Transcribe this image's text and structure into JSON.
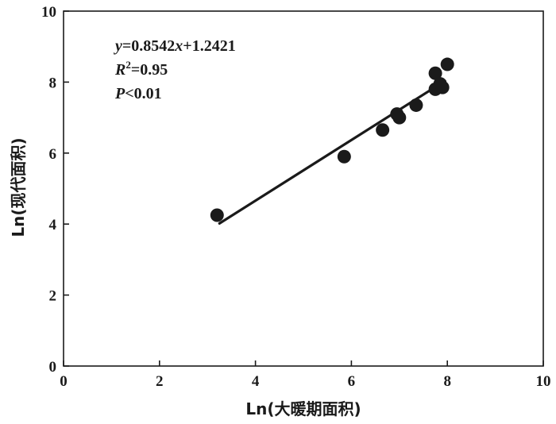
{
  "chart_data": {
    "type": "scatter",
    "xlabel": "Ln(大暖期面积)",
    "ylabel": "Ln(现代面积)",
    "xlim": [
      0,
      10
    ],
    "ylim": [
      0,
      10
    ],
    "x_ticks": [
      0,
      2,
      4,
      6,
      8,
      10
    ],
    "y_ticks": [
      0,
      2,
      4,
      6,
      8,
      10
    ],
    "grid": false,
    "points": [
      {
        "x": 3.2,
        "y": 4.25
      },
      {
        "x": 5.85,
        "y": 5.9
      },
      {
        "x": 6.65,
        "y": 6.65
      },
      {
        "x": 6.95,
        "y": 7.1
      },
      {
        "x": 7.0,
        "y": 7.0
      },
      {
        "x": 7.35,
        "y": 7.35
      },
      {
        "x": 7.75,
        "y": 8.25
      },
      {
        "x": 7.75,
        "y": 7.8
      },
      {
        "x": 7.85,
        "y": 7.95
      },
      {
        "x": 7.9,
        "y": 7.85
      },
      {
        "x": 8.0,
        "y": 8.5
      }
    ],
    "fit_line": {
      "slope": 0.8542,
      "intercept": 1.2421,
      "x_range": [
        3.25,
        7.95
      ]
    },
    "annotations": {
      "equation": {
        "var_y": "y",
        "rhs_1": "=0.8542",
        "var_x": "x",
        "rhs_2": "+1.2421"
      },
      "r2": {
        "var": "R",
        "sup": "2",
        "value": "=0.95"
      },
      "p": {
        "var": "P",
        "value": "<0.01"
      }
    },
    "colors": {
      "marker": "#1a1a1a",
      "line": "#1a1a1a",
      "axis": "#1a1a1a"
    }
  }
}
